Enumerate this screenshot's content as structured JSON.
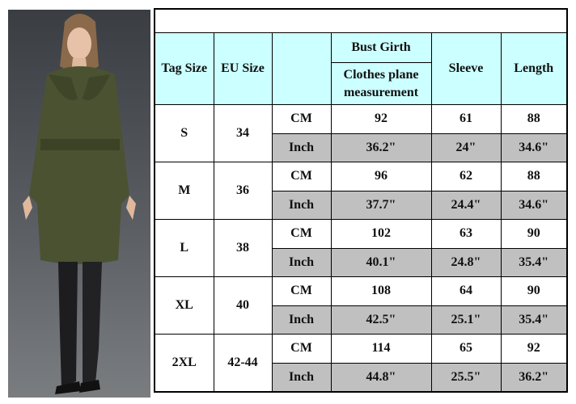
{
  "header": {
    "tag_size": "Tag Size",
    "eu_size": "EU Size",
    "unit": "",
    "bust_girth": "Bust Girth",
    "bust_sub": "Clothes plane measurement",
    "sleeve": "Sleeve",
    "length": "Length"
  },
  "units": {
    "cm": "CM",
    "inch": "Inch"
  },
  "colors": {
    "header_bg": "#ccffff",
    "inch_row_bg": "#c0c0c0",
    "coat": "#4b5232"
  },
  "rows": [
    {
      "tag": "S",
      "eu": "34",
      "cm": [
        "92",
        "61",
        "88"
      ],
      "inch": [
        "36.2\"",
        "24\"",
        "34.6\""
      ]
    },
    {
      "tag": "M",
      "eu": "36",
      "cm": [
        "96",
        "62",
        "88"
      ],
      "inch": [
        "37.7\"",
        "24.4\"",
        "34.6\""
      ]
    },
    {
      "tag": "L",
      "eu": "38",
      "cm": [
        "102",
        "63",
        "90"
      ],
      "inch": [
        "40.1\"",
        "24.8\"",
        "35.4\""
      ]
    },
    {
      "tag": "XL",
      "eu": "40",
      "cm": [
        "108",
        "64",
        "90"
      ],
      "inch": [
        "42.5\"",
        "25.1\"",
        "35.4\""
      ]
    },
    {
      "tag": "2XL",
      "eu": "42-44",
      "cm": [
        "114",
        "65",
        "92"
      ],
      "inch": [
        "44.8\"",
        "25.5\"",
        "36.2\""
      ]
    }
  ]
}
